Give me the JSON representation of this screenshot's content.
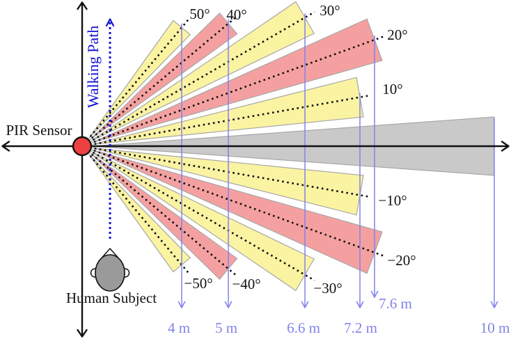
{
  "figure": {
    "pir_sensor_label": "PIR Sensor",
    "walking_path_label": "Walking Path",
    "human_subject_label": "Human Subject"
  },
  "colors": {
    "beam_yellow": "#faf3a2",
    "beam_pink": "#f5a0a0",
    "beam_gray": "#c9c9c9",
    "beam_stroke": "#a6a6a6",
    "beam_centerline": "#111111",
    "sensor_fill": "#ee4040",
    "axis_black": "#111111",
    "distance_blue": "#8282ea",
    "walking_path_blue": "#1212d6",
    "subject_gray": "#9a9a9a"
  },
  "chart_data": {
    "type": "diagram",
    "description": "PIR sensor detection beam pattern: eleven fan-shaped detection zones spaced 10 degrees apart from -50 to +50 degrees, with detection ranges marked by vertical distance lines below the figure.",
    "beams": [
      {
        "angle_deg": 50,
        "angle_label": "50°",
        "range_m": 4,
        "color": "yellow"
      },
      {
        "angle_deg": 40,
        "angle_label": "40°",
        "range_m": 5,
        "color": "pink"
      },
      {
        "angle_deg": 30,
        "angle_label": "30°",
        "range_m": 6.6,
        "color": "yellow"
      },
      {
        "angle_deg": 20,
        "angle_label": "20°",
        "range_m": 7.6,
        "color": "pink"
      },
      {
        "angle_deg": 10,
        "angle_label": "10°",
        "range_m": 7.2,
        "color": "yellow"
      },
      {
        "angle_deg": 0,
        "angle_label": "",
        "range_m": 10,
        "color": "gray"
      },
      {
        "angle_deg": -10,
        "angle_label": "−10°",
        "range_m": 7.2,
        "color": "yellow"
      },
      {
        "angle_deg": -20,
        "angle_label": "−20°",
        "range_m": 7.6,
        "color": "pink"
      },
      {
        "angle_deg": -30,
        "angle_label": "−30°",
        "range_m": 6.6,
        "color": "yellow"
      },
      {
        "angle_deg": -40,
        "angle_label": "−40°",
        "range_m": 5,
        "color": "pink"
      },
      {
        "angle_deg": -50,
        "angle_label": "−50°",
        "range_m": 4,
        "color": "yellow"
      }
    ],
    "distance_markers": [
      {
        "label": "4 m",
        "beam_angle": 50
      },
      {
        "label": "5 m",
        "beam_angle": 40
      },
      {
        "label": "6.6 m",
        "beam_angle": 30
      },
      {
        "label": "7.2 m",
        "beam_angle": 10
      },
      {
        "label": "7.6 m",
        "beam_angle": 20
      },
      {
        "label": "10 m",
        "beam_angle": 0
      }
    ]
  }
}
